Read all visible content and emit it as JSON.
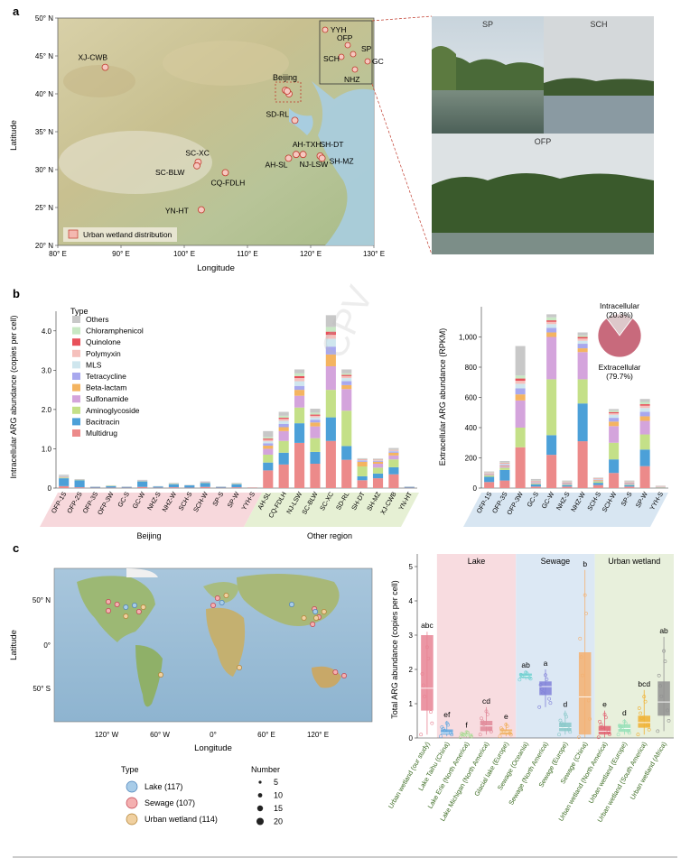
{
  "panels": {
    "a": "a",
    "b": "b",
    "c": "c"
  },
  "panel_a": {
    "map": {
      "ylabel": "Latitude",
      "xlabel": "Longitude",
      "lat_ticks": [
        "50° N",
        "45° N",
        "40° N",
        "35° N",
        "30° N",
        "25° N",
        "20° N"
      ],
      "lon_ticks": [
        "80° E",
        "90° E",
        "100° E",
        "110° E",
        "120° E",
        "130° E"
      ],
      "legend": "Urban wetland distribution",
      "region_label": "Beijing",
      "sites": [
        {
          "name": "XJ-CWB",
          "lon": 87.5,
          "lat": 43.5
        },
        {
          "name": "SD-RL",
          "lon": 117.5,
          "lat": 36.5
        },
        {
          "name": "SC-XC",
          "lon": 102.2,
          "lat": 31.0
        },
        {
          "name": "SC-BLW",
          "lon": 102.0,
          "lat": 30.5
        },
        {
          "name": "CQ-FDLH",
          "lon": 106.5,
          "lat": 29.6
        },
        {
          "name": "YN-HT",
          "lon": 102.7,
          "lat": 24.7
        },
        {
          "name": "AH-TXH",
          "lon": 117.7,
          "lat": 32.0
        },
        {
          "name": "AH-SL",
          "lon": 116.5,
          "lat": 31.5
        },
        {
          "name": "NJ-LSW",
          "lon": 118.8,
          "lat": 32.0
        },
        {
          "name": "SH-DT",
          "lon": 121.5,
          "lat": 31.8
        },
        {
          "name": "SH-MZ",
          "lon": 121.8,
          "lat": 31.5
        }
      ],
      "inset_sites": [
        "YYH",
        "OFP",
        "SCH",
        "SP",
        "GC",
        "NHZ"
      ],
      "lon_range": [
        80,
        130
      ],
      "lat_range": [
        20,
        50
      ]
    },
    "photos": {
      "top_left": "SP",
      "top_right": "SCH",
      "bottom": "OFP"
    }
  },
  "colors": {
    "Others": "#c8c8c8",
    "Chloramphenicol": "#c8e8c4",
    "Quinolone": "#e8505a",
    "Polymyxin": "#f5c0bc",
    "MLS": "#cfe6ee",
    "Tetracycline": "#a8a8ee",
    "Beta-lactam": "#f4b460",
    "Sulfonamide": "#d4a4dc",
    "Aminoglycoside": "#c4e088",
    "Bacitracin": "#4ca0d8",
    "Multidrug": "#ec8a8a"
  },
  "chart_data": [
    {
      "type": "bar",
      "stacked": true,
      "ylabel": "Intracellular ARG abundance (copies per cell)",
      "ylim": [
        0,
        4.5
      ],
      "yticks": [
        "0",
        "1.0",
        "2.0",
        "3.0",
        "4.0"
      ],
      "legend_title": "Type",
      "legend": [
        "Others",
        "Chloramphenicol",
        "Quinolone",
        "Polymyxin",
        "MLS",
        "Tetracycline",
        "Beta-lactam",
        "Sulfonamide",
        "Aminoglycoside",
        "Bacitracin",
        "Multidrug"
      ],
      "categories": [
        "OFP-1S",
        "OFP-2S",
        "OFP-3S",
        "OFP-3W",
        "GC-S",
        "GC-W",
        "NHZ-S",
        "NHZ-W",
        "SCH-S",
        "SCH-W",
        "SP-S",
        "SP-W",
        "YYH-S",
        "AH-SL",
        "CQ-FDLH",
        "NJ-LSW",
        "SC-BLW",
        "SC-XC",
        "SD-RL",
        "SH-DT",
        "SH-MZ",
        "XJ-CWB",
        "YN-HT"
      ],
      "groups": [
        {
          "label": "Beijing",
          "from": 0,
          "to": 12
        },
        {
          "label": "Other region",
          "from": 13,
          "to": 22
        }
      ],
      "series": [
        {
          "name": "Multidrug",
          "values": [
            0.05,
            0.02,
            0.01,
            0.01,
            0.01,
            0.03,
            0.01,
            0.02,
            0.01,
            0.03,
            0.01,
            0.02,
            0.01,
            0.45,
            0.6,
            1.15,
            0.62,
            1.2,
            0.72,
            0.2,
            0.25,
            0.35,
            0.01
          ]
        },
        {
          "name": "Bacitracin",
          "values": [
            0.2,
            0.18,
            0.02,
            0.04,
            0.02,
            0.14,
            0.03,
            0.08,
            0.06,
            0.1,
            0.02,
            0.08,
            0.0,
            0.2,
            0.3,
            0.5,
            0.3,
            0.6,
            0.35,
            0.1,
            0.12,
            0.18,
            0.02
          ]
        },
        {
          "name": "Aminoglycoside",
          "values": [
            0.02,
            0.01,
            0.0,
            0.01,
            0.0,
            0.01,
            0.0,
            0.01,
            0.0,
            0.01,
            0.0,
            0.01,
            0.0,
            0.2,
            0.3,
            0.4,
            0.35,
            0.7,
            0.9,
            0.25,
            0.15,
            0.2,
            0.0
          ]
        },
        {
          "name": "Sulfonamide",
          "values": [
            0.01,
            0.0,
            0.0,
            0.0,
            0.0,
            0.01,
            0.0,
            0.0,
            0.0,
            0.01,
            0.0,
            0.0,
            0.0,
            0.15,
            0.25,
            0.3,
            0.3,
            0.6,
            0.55,
            0.0,
            0.1,
            0.1,
            0.0
          ]
        },
        {
          "name": "Beta-lactam",
          "values": [
            0.01,
            0.0,
            0.0,
            0.0,
            0.0,
            0.0,
            0.0,
            0.0,
            0.0,
            0.0,
            0.0,
            0.0,
            0.0,
            0.08,
            0.1,
            0.15,
            0.1,
            0.3,
            0.1,
            0.12,
            0.05,
            0.07,
            0.0
          ]
        },
        {
          "name": "Tetracycline",
          "values": [
            0.01,
            0.0,
            0.0,
            0.0,
            0.0,
            0.0,
            0.0,
            0.0,
            0.0,
            0.0,
            0.0,
            0.0,
            0.0,
            0.06,
            0.08,
            0.1,
            0.07,
            0.2,
            0.1,
            0.03,
            0.02,
            0.03,
            0.0
          ]
        },
        {
          "name": "MLS",
          "values": [
            0.01,
            0.0,
            0.0,
            0.0,
            0.0,
            0.0,
            0.0,
            0.0,
            0.0,
            0.0,
            0.0,
            0.0,
            0.0,
            0.05,
            0.08,
            0.12,
            0.06,
            0.2,
            0.08,
            0.01,
            0.01,
            0.02,
            0.0
          ]
        },
        {
          "name": "Polymyxin",
          "values": [
            0.0,
            0.0,
            0.0,
            0.0,
            0.0,
            0.0,
            0.0,
            0.0,
            0.0,
            0.0,
            0.0,
            0.0,
            0.0,
            0.04,
            0.05,
            0.08,
            0.04,
            0.1,
            0.05,
            0.01,
            0.01,
            0.01,
            0.0
          ]
        },
        {
          "name": "Quinolone",
          "values": [
            0.0,
            0.0,
            0.0,
            0.0,
            0.0,
            0.0,
            0.0,
            0.0,
            0.0,
            0.0,
            0.0,
            0.0,
            0.0,
            0.03,
            0.03,
            0.05,
            0.03,
            0.08,
            0.03,
            0.01,
            0.01,
            0.01,
            0.0
          ]
        },
        {
          "name": "Chloramphenicol",
          "values": [
            0.0,
            0.0,
            0.0,
            0.0,
            0.0,
            0.0,
            0.0,
            0.0,
            0.0,
            0.0,
            0.0,
            0.0,
            0.0,
            0.04,
            0.05,
            0.07,
            0.05,
            0.12,
            0.04,
            0.01,
            0.01,
            0.01,
            0.0
          ]
        },
        {
          "name": "Others",
          "values": [
            0.03,
            0.02,
            0.01,
            0.01,
            0.01,
            0.02,
            0.01,
            0.02,
            0.01,
            0.02,
            0.01,
            0.02,
            0.01,
            0.15,
            0.1,
            0.1,
            0.1,
            0.3,
            0.1,
            0.02,
            0.02,
            0.04,
            0.01
          ]
        }
      ]
    },
    {
      "type": "bar",
      "stacked": true,
      "ylabel": "Extracellular ARG abundance (RPKM)",
      "ylim": [
        0,
        1200
      ],
      "yticks": [
        "0",
        "200",
        "400",
        "600",
        "800",
        "1,000"
      ],
      "categories": [
        "OFP-1S",
        "OFP-3S",
        "OFP-3W",
        "GC-S",
        "GC-W",
        "NHZ-S",
        "NHZ-W",
        "SCH-S",
        "SCH-W",
        "SP-S",
        "SP-W",
        "YYH-S"
      ],
      "series": [
        {
          "name": "Multidrug",
          "values": [
            40,
            50,
            270,
            10,
            220,
            10,
            310,
            20,
            100,
            10,
            145,
            2
          ]
        },
        {
          "name": "Bacitracin",
          "values": [
            35,
            70,
            0,
            15,
            130,
            10,
            250,
            15,
            90,
            10,
            110,
            2
          ]
        },
        {
          "name": "Aminoglycoside",
          "values": [
            10,
            15,
            130,
            5,
            370,
            5,
            160,
            10,
            110,
            5,
            100,
            2
          ]
        },
        {
          "name": "Sulfonamide",
          "values": [
            5,
            10,
            180,
            5,
            280,
            5,
            180,
            5,
            110,
            5,
            90,
            2
          ]
        },
        {
          "name": "Beta-lactam",
          "values": [
            3,
            5,
            40,
            3,
            30,
            3,
            25,
            5,
            30,
            3,
            30,
            1
          ]
        },
        {
          "name": "Tetracycline",
          "values": [
            3,
            5,
            40,
            3,
            30,
            3,
            30,
            3,
            25,
            3,
            30,
            1
          ]
        },
        {
          "name": "MLS",
          "values": [
            3,
            5,
            30,
            3,
            25,
            3,
            20,
            3,
            20,
            3,
            25,
            1
          ]
        },
        {
          "name": "Polymyxin",
          "values": [
            2,
            3,
            20,
            2,
            15,
            2,
            15,
            2,
            10,
            2,
            15,
            1
          ]
        },
        {
          "name": "Quinolone",
          "values": [
            2,
            3,
            15,
            2,
            10,
            2,
            10,
            2,
            8,
            2,
            10,
            1
          ]
        },
        {
          "name": "Chloramphenicol",
          "values": [
            2,
            3,
            20,
            2,
            20,
            2,
            10,
            2,
            10,
            2,
            15,
            1
          ]
        },
        {
          "name": "Others",
          "values": [
            5,
            10,
            195,
            10,
            20,
            5,
            20,
            3,
            10,
            5,
            20,
            2
          ]
        }
      ],
      "pie": {
        "slices": [
          {
            "name": "Intracellular",
            "value": 20.3,
            "label": "Intracellular",
            "pct": "(20.3%)"
          },
          {
            "name": "Extracellular",
            "value": 79.7,
            "label": "Extracellular",
            "pct": "(79.7%)"
          }
        ]
      }
    },
    {
      "type": "box",
      "ylabel": "Total ARG abundance (copies per cell)",
      "ylim": [
        0,
        5
      ],
      "yticks": [
        "0",
        "1",
        "2",
        "3",
        "4",
        "5"
      ],
      "groups": [
        {
          "label": "Lake",
          "from": 1,
          "to": 4
        },
        {
          "label": "Sewage",
          "from": 5,
          "to": 8
        },
        {
          "label": "Urban wetland",
          "from": 9,
          "to": 12
        }
      ],
      "boxes": [
        {
          "category": "Urban wetland (our study)",
          "letter": "abc",
          "q1": 0.8,
          "median": 1.45,
          "q3": 3.0,
          "lo": 0.1,
          "hi": 3.1,
          "color": "#e88494"
        },
        {
          "category": "Lake Taihu (China)",
          "letter": "ef",
          "q1": 0.1,
          "median": 0.15,
          "q3": 0.25,
          "lo": 0.05,
          "hi": 0.5,
          "color": "#60a8e0"
        },
        {
          "category": "Lake Erie (North America)",
          "letter": "f",
          "q1": 0.05,
          "median": 0.08,
          "q3": 0.12,
          "lo": 0.02,
          "hi": 0.2,
          "color": "#a8d890"
        },
        {
          "category": "Lake Michigan (North America)",
          "letter": "cd",
          "q1": 0.2,
          "median": 0.35,
          "q3": 0.5,
          "lo": 0.1,
          "hi": 0.9,
          "color": "#e08898"
        },
        {
          "category": "Glacial lake (Europe)",
          "letter": "e",
          "q1": 0.1,
          "median": 0.18,
          "q3": 0.25,
          "lo": 0.05,
          "hi": 0.45,
          "color": "#f0b060"
        },
        {
          "category": "Sewage (Oceania)",
          "letter": "ab",
          "q1": 1.75,
          "median": 1.8,
          "q3": 1.88,
          "lo": 1.7,
          "hi": 1.95,
          "color": "#70d0d0"
        },
        {
          "category": "Sewage (North America)",
          "letter": "a",
          "q1": 1.25,
          "median": 1.5,
          "q3": 1.65,
          "lo": 0.9,
          "hi": 2.0,
          "color": "#8080d8"
        },
        {
          "category": "Sewage (Europe)",
          "letter": "d",
          "q1": 0.2,
          "median": 0.3,
          "q3": 0.45,
          "lo": 0.1,
          "hi": 0.8,
          "color": "#88c8c8"
        },
        {
          "category": "Sewage (China)",
          "letter": "b",
          "q1": 0.1,
          "median": 1.2,
          "q3": 2.5,
          "lo": 0.02,
          "hi": 4.9,
          "color": "#f4b070"
        },
        {
          "category": "Urban wetland (North America)",
          "letter": "e",
          "q1": 0.1,
          "median": 0.2,
          "q3": 0.35,
          "lo": 0.02,
          "hi": 0.8,
          "color": "#e06070"
        },
        {
          "category": "Urban wetland (Europe)",
          "letter": "d",
          "q1": 0.18,
          "median": 0.28,
          "q3": 0.4,
          "lo": 0.1,
          "hi": 0.55,
          "color": "#98e0b8"
        },
        {
          "category": "Urban wetland (South America)",
          "letter": "bcd",
          "q1": 0.3,
          "median": 0.45,
          "q3": 0.65,
          "lo": 0.1,
          "hi": 1.4,
          "color": "#f0b030"
        },
        {
          "category": "Urban wetland (Africa)",
          "letter": "ab",
          "q1": 0.65,
          "median": 1.05,
          "q3": 1.65,
          "lo": 0.2,
          "hi": 2.95,
          "color": "#909090"
        }
      ]
    }
  ],
  "panel_c_map": {
    "ylabel": "Latitude",
    "xlabel": "Longitude",
    "lat_ticks": [
      "50° N",
      "0°",
      "50° S"
    ],
    "lon_ticks": [
      "120° W",
      "60° W",
      "0°",
      "60° E",
      "120° E"
    ],
    "type_title": "Type",
    "types": [
      {
        "label": "Lake (117)",
        "color": "#a8cce8"
      },
      {
        "label": "Sewage (107)",
        "color": "#f4b0b0"
      },
      {
        "label": "Urban wetland (114)",
        "color": "#f0d0a0"
      }
    ],
    "number_title": "Number",
    "numbers": [
      "5",
      "10",
      "15",
      "20"
    ],
    "points": [
      {
        "lon": -120,
        "lat": 48,
        "t": 1
      },
      {
        "lon": -110,
        "lat": 45,
        "t": 1
      },
      {
        "lon": -100,
        "lat": 42,
        "t": 0
      },
      {
        "lon": -90,
        "lat": 44,
        "t": 0
      },
      {
        "lon": -80,
        "lat": 42,
        "t": 2
      },
      {
        "lon": -120,
        "lat": 38,
        "t": 1
      },
      {
        "lon": -100,
        "lat": 32,
        "t": 2
      },
      {
        "lon": -85,
        "lat": 37,
        "t": 1
      },
      {
        "lon": -60,
        "lat": -33,
        "t": 2
      },
      {
        "lon": 5,
        "lat": 52,
        "t": 1
      },
      {
        "lon": 10,
        "lat": 47,
        "t": 0
      },
      {
        "lon": 0,
        "lat": 44,
        "t": 1
      },
      {
        "lon": 15,
        "lat": 55,
        "t": 2
      },
      {
        "lon": 30,
        "lat": -25,
        "t": 2
      },
      {
        "lon": 116,
        "lat": 40,
        "t": 1
      },
      {
        "lon": 117,
        "lat": 37,
        "t": 0
      },
      {
        "lon": 121,
        "lat": 31,
        "t": 1
      },
      {
        "lon": 118,
        "lat": 30,
        "t": 2
      },
      {
        "lon": 104,
        "lat": 30,
        "t": 2
      },
      {
        "lon": 114,
        "lat": 23,
        "t": 1
      },
      {
        "lon": 90,
        "lat": 45,
        "t": 0
      },
      {
        "lon": 150,
        "lat": -34,
        "t": 1
      },
      {
        "lon": 140,
        "lat": -30,
        "t": 1
      },
      {
        "lon": 127,
        "lat": 37,
        "t": 2
      }
    ]
  }
}
